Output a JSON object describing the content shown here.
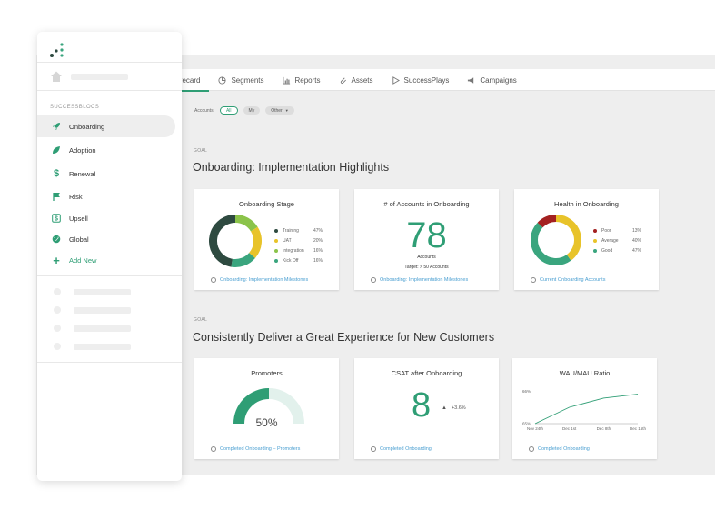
{
  "tabs": [
    {
      "label": "Scorecard",
      "icon": "scorecard-icon",
      "active": true
    },
    {
      "label": "Segments",
      "icon": "pie-icon"
    },
    {
      "label": "Reports",
      "icon": "bar-chart-icon"
    },
    {
      "label": "Assets",
      "icon": "paperclip-icon"
    },
    {
      "label": "SuccessPlays",
      "icon": "play-icon"
    },
    {
      "label": "Campaigns",
      "icon": "megaphone-icon"
    }
  ],
  "filters": {
    "label": "Accounts:",
    "options": [
      "All",
      "My",
      "Other"
    ],
    "selected": "All"
  },
  "section1": {
    "goal_label": "GOAL",
    "title": "Onboarding: Implementation Highlights",
    "cards": {
      "stage": {
        "title": "Onboarding Stage",
        "legend": [
          {
            "label": "Training",
            "pct": "47%",
            "color": "#2e4a40"
          },
          {
            "label": "UAT",
            "pct": "20%",
            "color": "#e8c32a"
          },
          {
            "label": "Integration",
            "pct": "16%",
            "color": "#8bc34a"
          },
          {
            "label": "Kick Off",
            "pct": "16%",
            "color": "#3aa57e"
          }
        ],
        "footer": "Onboarding: Implementation Milestones"
      },
      "accounts": {
        "title": "# of Accounts in Onboarding",
        "value": "78",
        "unit": "Accounts",
        "target": "Target: > 50 Accounts",
        "footer": "Onboarding: Implementation Milestones"
      },
      "health": {
        "title": "Health in Onboarding",
        "legend": [
          {
            "label": "Poor",
            "pct": "13%",
            "color": "#a32121"
          },
          {
            "label": "Average",
            "pct": "40%",
            "color": "#e8c32a"
          },
          {
            "label": "Good",
            "pct": "47%",
            "color": "#3aa57e"
          }
        ],
        "footer": "Current Onboarding Accounts"
      }
    }
  },
  "section2": {
    "goal_label": "GOAL",
    "title": "Consistently Deliver a Great Experience for New Customers",
    "cards": {
      "promoters": {
        "title": "Promoters",
        "value": "50%",
        "fraction": 0.5,
        "footer": "Completed Onboarding – Promoters"
      },
      "csat": {
        "title": "CSAT after Onboarding",
        "value": "8",
        "delta": "+3.6%",
        "footer": "Completed Onboarding"
      },
      "wau": {
        "title": "WAU/MAU Ratio",
        "footer": "Completed Onboarding"
      }
    }
  },
  "sidebar": {
    "section_header": "SUCCESSBLOCS",
    "items": [
      {
        "label": "Onboarding",
        "icon": "rocket-icon",
        "active": true
      },
      {
        "label": "Adoption",
        "icon": "leaf-icon"
      },
      {
        "label": "Renewal",
        "icon": "dollar-icon"
      },
      {
        "label": "Risk",
        "icon": "flag-icon"
      },
      {
        "label": "Upsell",
        "icon": "dollar-box-icon"
      },
      {
        "label": "Global",
        "icon": "globe-icon"
      },
      {
        "label": "Add New",
        "icon": "plus-icon"
      }
    ]
  },
  "colors": {
    "accent": "#2f9e75",
    "link": "#4a9fd1",
    "dark_green": "#2e4a40"
  },
  "chart_data": [
    {
      "type": "pie",
      "title": "Onboarding Stage",
      "categories": [
        "Training",
        "UAT",
        "Integration",
        "Kick Off"
      ],
      "values": [
        47,
        20,
        16,
        16
      ]
    },
    {
      "type": "pie",
      "title": "Health in Onboarding",
      "categories": [
        "Poor",
        "Average",
        "Good"
      ],
      "values": [
        13,
        40,
        47
      ]
    },
    {
      "type": "line",
      "title": "WAU/MAU Ratio",
      "x": [
        "Nov 24th",
        "Dec 1st",
        "Dec 8th",
        "Dec 15th"
      ],
      "values": [
        65,
        67.5,
        68.9,
        69.5
      ],
      "yticks": [
        "65%",
        "66%"
      ],
      "ylim": [
        65,
        70
      ]
    }
  ]
}
